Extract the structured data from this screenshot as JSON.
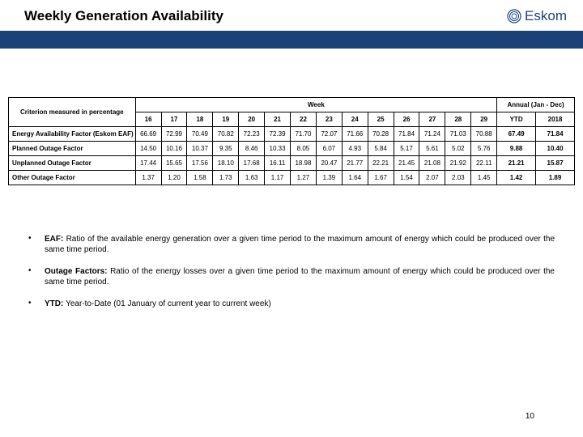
{
  "title": "Weekly Generation Availability",
  "logo": {
    "text": "Eskom"
  },
  "pageNumber": "10",
  "table": {
    "criterionHeader": "Criterion measured in percentage",
    "weekHeader": "Week",
    "annualHeader": "Annual (Jan - Dec)",
    "weekNumbers": [
      "16",
      "17",
      "18",
      "19",
      "20",
      "21",
      "22",
      "23",
      "24",
      "25",
      "26",
      "27",
      "28",
      "29"
    ],
    "ytdHeader": "YTD",
    "yearHeader": "2018",
    "rows": [
      {
        "label": "Energy Availability Factor (Eskom EAF)",
        "values": [
          "66.69",
          "72.99",
          "70.49",
          "70.82",
          "72.23",
          "72.39",
          "71.70",
          "72.07",
          "71.66",
          "70.28",
          "71.84",
          "71.24",
          "71.03",
          "70.88"
        ],
        "ytd": "67.49",
        "annual": "71.84"
      },
      {
        "label": "Planned Outage Factor",
        "values": [
          "14.50",
          "10.16",
          "10.37",
          "9.35",
          "8.46",
          "10.33",
          "8.05",
          "6.07",
          "4.93",
          "5.84",
          "5.17",
          "5.61",
          "5.02",
          "5.76"
        ],
        "ytd": "9.88",
        "annual": "10.40"
      },
      {
        "label": "Unplanned Outage Factor",
        "values": [
          "17.44",
          "15.65",
          "17.56",
          "18.10",
          "17.68",
          "16.11",
          "18.98",
          "20.47",
          "21.77",
          "22.21",
          "21.45",
          "21.08",
          "21.92",
          "22.11"
        ],
        "ytd": "21.21",
        "annual": "15.87"
      },
      {
        "label": "Other Outage Factor",
        "values": [
          "1.37",
          "1.20",
          "1.58",
          "1.73",
          "1.63",
          "1.17",
          "1.27",
          "1.39",
          "1.64",
          "1.67",
          "1.54",
          "2.07",
          "2.03",
          "1.45"
        ],
        "ytd": "1.42",
        "annual": "1.89"
      }
    ]
  },
  "bullets": [
    {
      "label": "EAF:",
      "text": "Ratio of the available energy generation over a given time period to the maximum amount of energy which could be produced over the same time period."
    },
    {
      "label": "Outage Factors:",
      "text": "Ratio of the energy losses over a given time period to the maximum amount of energy which could be produced over the same time period."
    },
    {
      "label": "YTD:",
      "text": "Year-to-Date (01 January of current year to current week)"
    }
  ]
}
